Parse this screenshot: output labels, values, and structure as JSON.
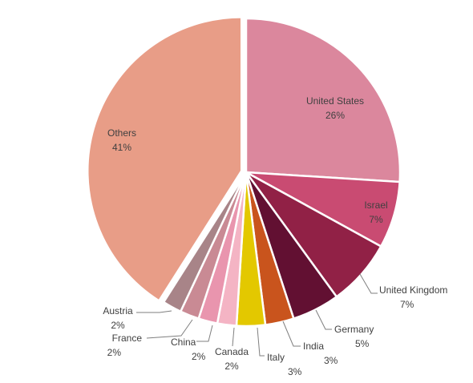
{
  "chart_data": {
    "type": "pie",
    "title": "",
    "slices": [
      {
        "name": "United States",
        "value": 26,
        "label": "26%",
        "color": "#DB879D"
      },
      {
        "name": "Israel",
        "value": 7,
        "label": "7%",
        "color": "#C94B72"
      },
      {
        "name": "United Kingdom",
        "value": 7,
        "label": "7%",
        "color": "#912146"
      },
      {
        "name": "Germany",
        "value": 5,
        "label": "5%",
        "color": "#621032"
      },
      {
        "name": "India",
        "value": 3,
        "label": "3%",
        "color": "#C9541D"
      },
      {
        "name": "Italy",
        "value": 3,
        "label": "3%",
        "color": "#E3C800"
      },
      {
        "name": "Canada",
        "value": 2,
        "label": "2%",
        "color": "#F4B4C4"
      },
      {
        "name": "China",
        "value": 2,
        "label": "2%",
        "color": "#E995AE"
      },
      {
        "name": "France",
        "value": 2,
        "label": "2%",
        "color": "#C98A94"
      },
      {
        "name": "Austria",
        "value": 2,
        "label": "2%",
        "color": "#A88488"
      },
      {
        "name": "Others",
        "value": 41,
        "label": "41%",
        "color": "#E89D87",
        "exploded": true
      }
    ],
    "start_angle": "12 o'clock",
    "direction": "clockwise"
  }
}
